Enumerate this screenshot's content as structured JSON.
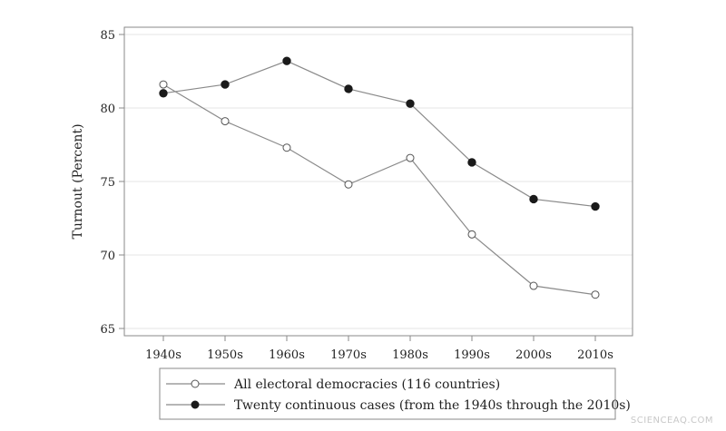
{
  "watermark": "SCIENCEAQ.COM",
  "chart_data": {
    "type": "line",
    "title": "",
    "xlabel": "",
    "ylabel": "Turnout (Percent)",
    "categories": [
      "1940s",
      "1950s",
      "1960s",
      "1970s",
      "1980s",
      "1990s",
      "2000s",
      "2010s"
    ],
    "ylim": [
      65,
      85
    ],
    "yticks": [
      65,
      70,
      75,
      80,
      85
    ],
    "grid": "horizontal",
    "legend_position": "bottom",
    "series": [
      {
        "name": "All electoral democracies (116 countries)",
        "marker": "hollow-circle",
        "values": [
          81.6,
          79.1,
          77.3,
          74.8,
          76.6,
          71.4,
          67.9,
          67.3
        ]
      },
      {
        "name": "Twenty continuous cases (from the 1940s through the 2010s)",
        "marker": "filled-circle",
        "values": [
          81.0,
          81.6,
          83.2,
          81.3,
          80.3,
          76.3,
          73.8,
          73.3
        ]
      }
    ],
    "colors": {
      "line": "#8a8a8a",
      "marker": "#1a1a1a",
      "grid": "#e6e6e6",
      "frame": "#8a8a8a"
    }
  }
}
